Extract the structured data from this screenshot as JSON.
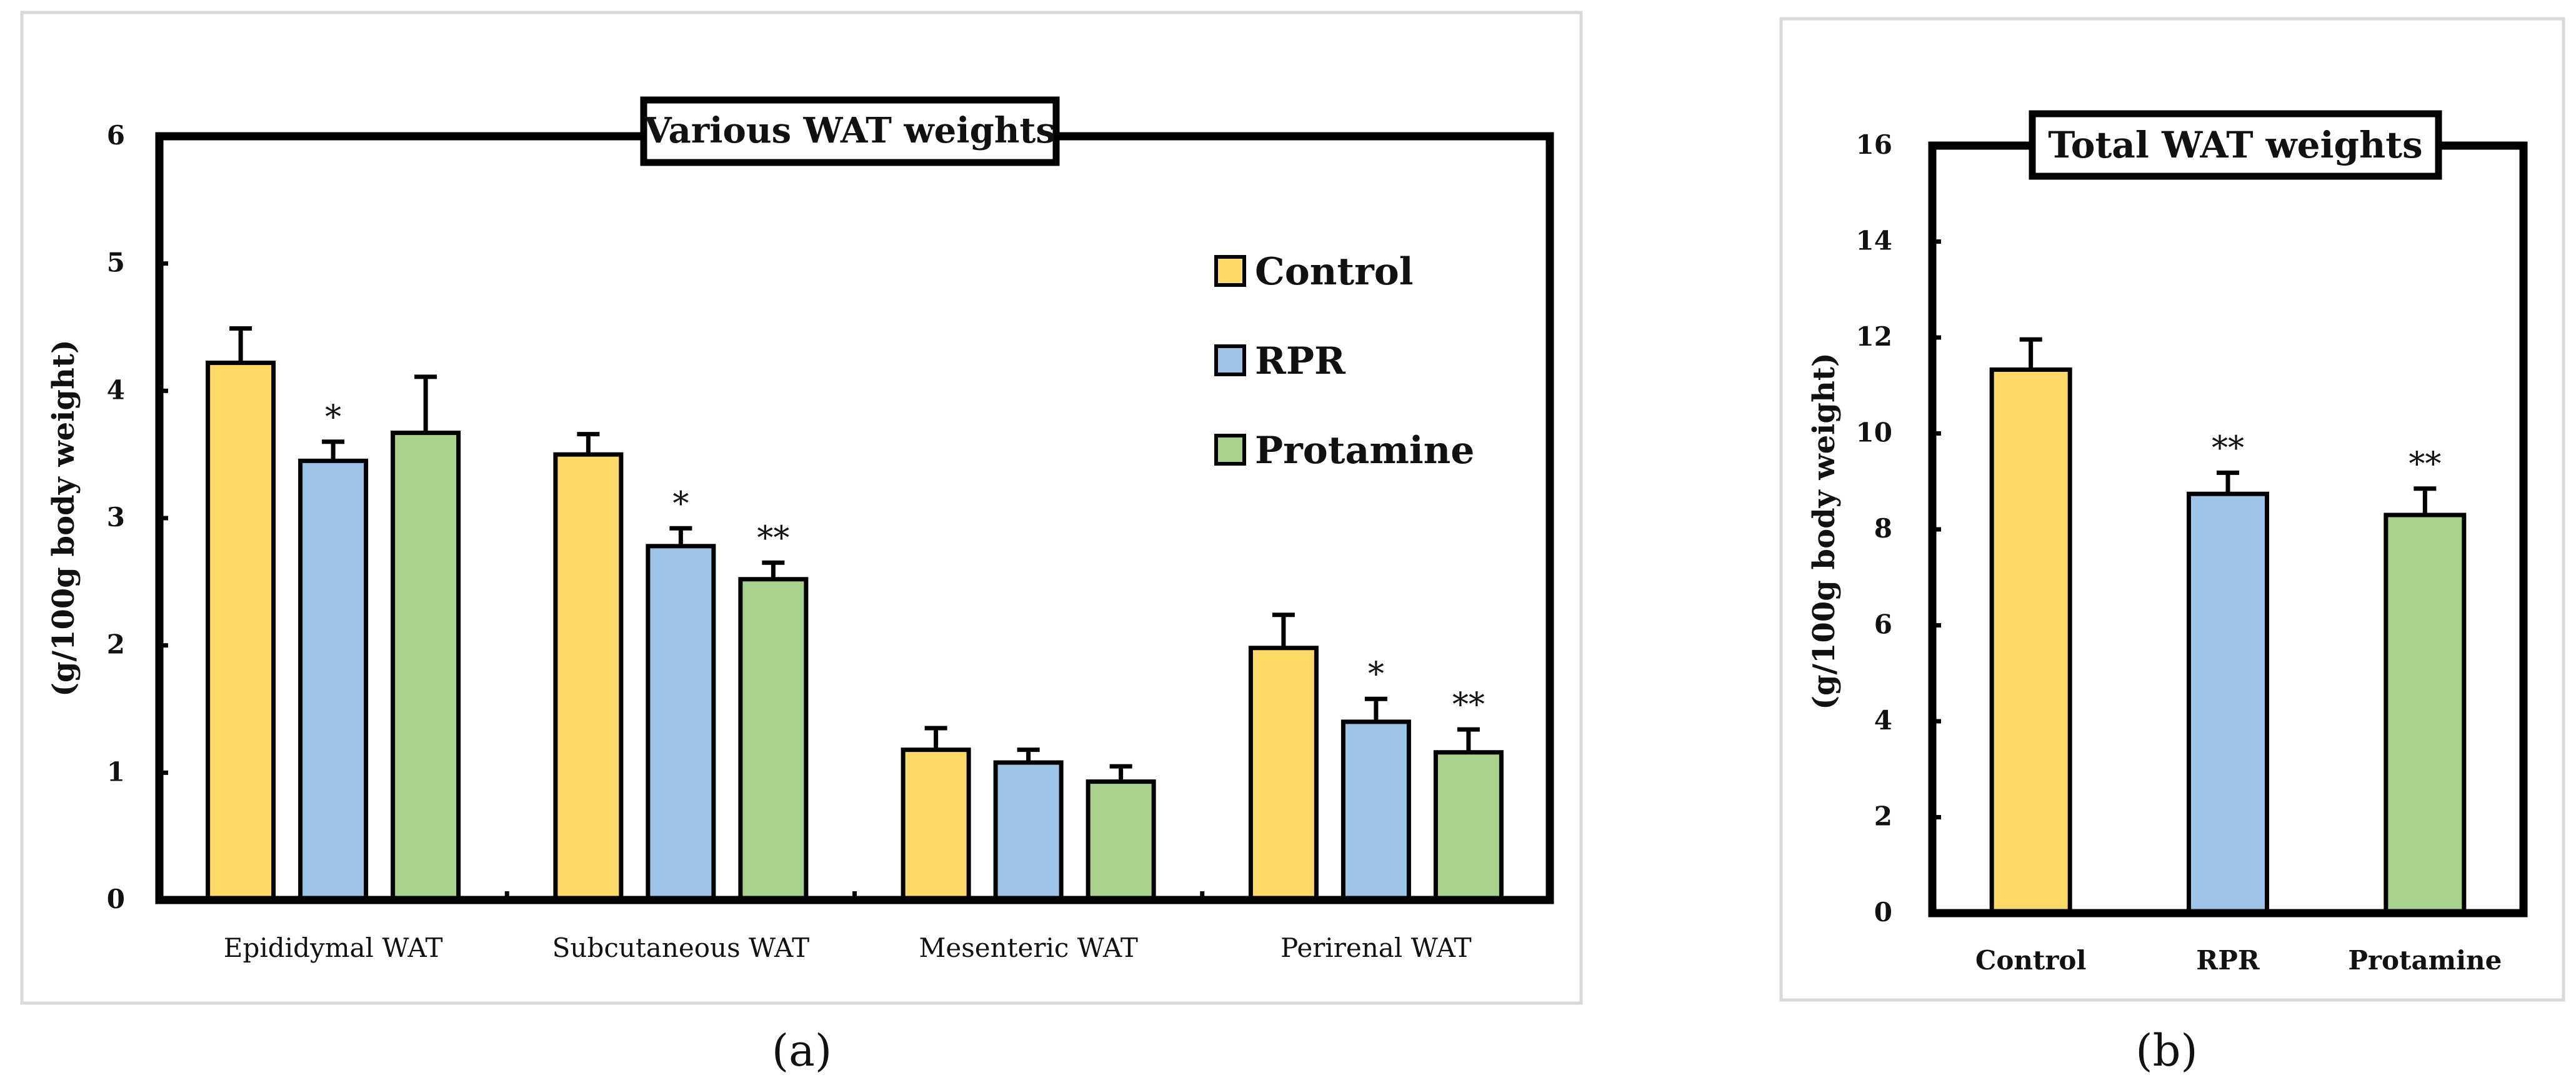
{
  "panel_labels": {
    "a": "(a)",
    "b": "(b)"
  },
  "colors": {
    "Control": "#FDD967",
    "RPR": "#9DC3E6",
    "Protamine": "#A9D18E",
    "axis": "#000000"
  },
  "chart_data": [
    {
      "type": "bar",
      "title": "Various WAT weights",
      "ylabel": "(g/100g body weight)",
      "xlabel": "",
      "ylim": [
        0,
        6
      ],
      "yticks": [
        "0",
        "1",
        "2",
        "3",
        "4",
        "5",
        "6"
      ],
      "categories": [
        "Epididymal WAT",
        "Subcutaneous WAT",
        "Mesenteric WAT",
        "Perirenal WAT"
      ],
      "legend": {
        "position": "top-right",
        "entries": [
          "Control",
          "RPR",
          "Protamine"
        ]
      },
      "series": [
        {
          "name": "Control",
          "values": [
            4.22,
            3.5,
            1.18,
            1.98
          ],
          "errors": [
            0.27,
            0.16,
            0.17,
            0.26
          ],
          "sig": [
            "",
            "",
            "",
            ""
          ]
        },
        {
          "name": "RPR",
          "values": [
            3.45,
            2.78,
            1.08,
            1.4
          ],
          "errors": [
            0.15,
            0.14,
            0.1,
            0.18
          ],
          "sig": [
            "*",
            "*",
            "",
            "*"
          ]
        },
        {
          "name": "Protamine",
          "values": [
            3.67,
            2.52,
            0.93,
            1.16
          ],
          "errors": [
            0.44,
            0.13,
            0.12,
            0.18
          ],
          "sig": [
            "",
            "**",
            "",
            "**"
          ]
        }
      ]
    },
    {
      "type": "bar",
      "title": "Total WAT weights",
      "ylabel": "(g/100g body weight)",
      "xlabel": "",
      "ylim": [
        0,
        16
      ],
      "yticks": [
        "0",
        "2",
        "4",
        "6",
        "8",
        "10",
        "12",
        "14",
        "16"
      ],
      "categories": [
        "Control",
        "RPR",
        "Protamine"
      ],
      "values": [
        11.33,
        8.74,
        8.3
      ],
      "errors": [
        0.63,
        0.44,
        0.55
      ],
      "sig": [
        "",
        "**",
        "**"
      ],
      "bar_series": [
        "Control",
        "RPR",
        "Protamine"
      ]
    }
  ]
}
